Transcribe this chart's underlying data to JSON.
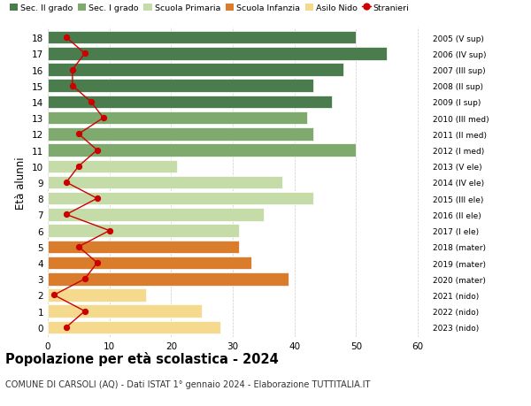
{
  "ages": [
    18,
    17,
    16,
    15,
    14,
    13,
    12,
    11,
    10,
    9,
    8,
    7,
    6,
    5,
    4,
    3,
    2,
    1,
    0
  ],
  "bar_values": [
    50,
    55,
    48,
    43,
    46,
    42,
    43,
    50,
    21,
    38,
    43,
    35,
    31,
    31,
    33,
    39,
    16,
    25,
    28
  ],
  "bar_colors": [
    "#4a7c4e",
    "#4a7c4e",
    "#4a7c4e",
    "#4a7c4e",
    "#4a7c4e",
    "#7faa6e",
    "#7faa6e",
    "#7faa6e",
    "#c5dca8",
    "#c5dca8",
    "#c5dca8",
    "#c5dca8",
    "#c5dca8",
    "#d97c2b",
    "#d97c2b",
    "#d97c2b",
    "#f5d98c",
    "#f5d98c",
    "#f5d98c"
  ],
  "right_labels": [
    "2005 (V sup)",
    "2006 (IV sup)",
    "2007 (III sup)",
    "2008 (II sup)",
    "2009 (I sup)",
    "2010 (III med)",
    "2011 (II med)",
    "2012 (I med)",
    "2013 (V ele)",
    "2014 (IV ele)",
    "2015 (III ele)",
    "2016 (II ele)",
    "2017 (I ele)",
    "2018 (mater)",
    "2019 (mater)",
    "2020 (mater)",
    "2021 (nido)",
    "2022 (nido)",
    "2023 (nido)"
  ],
  "stranieri_values": [
    3,
    6,
    4,
    4,
    7,
    9,
    5,
    8,
    5,
    3,
    8,
    3,
    10,
    5,
    8,
    6,
    1,
    6,
    3
  ],
  "legend_labels": [
    "Sec. II grado",
    "Sec. I grado",
    "Scuola Primaria",
    "Scuola Infanzia",
    "Asilo Nido",
    "Stranieri"
  ],
  "legend_colors": [
    "#4a7c4e",
    "#7faa6e",
    "#c5dca8",
    "#d97c2b",
    "#f5d98c",
    "#cc0000"
  ],
  "title": "Popolazione per età scolastica - 2024",
  "subtitle": "COMUNE DI CARSOLI (AQ) - Dati ISTAT 1° gennaio 2024 - Elaborazione TUTTITALIA.IT",
  "ylabel_left": "Età alunni",
  "xlim": [
    0,
    62
  ],
  "xticks": [
    0,
    10,
    20,
    30,
    40,
    50,
    60
  ],
  "background_color": "#ffffff",
  "bar_height": 0.8,
  "grid_color": "#cccccc"
}
